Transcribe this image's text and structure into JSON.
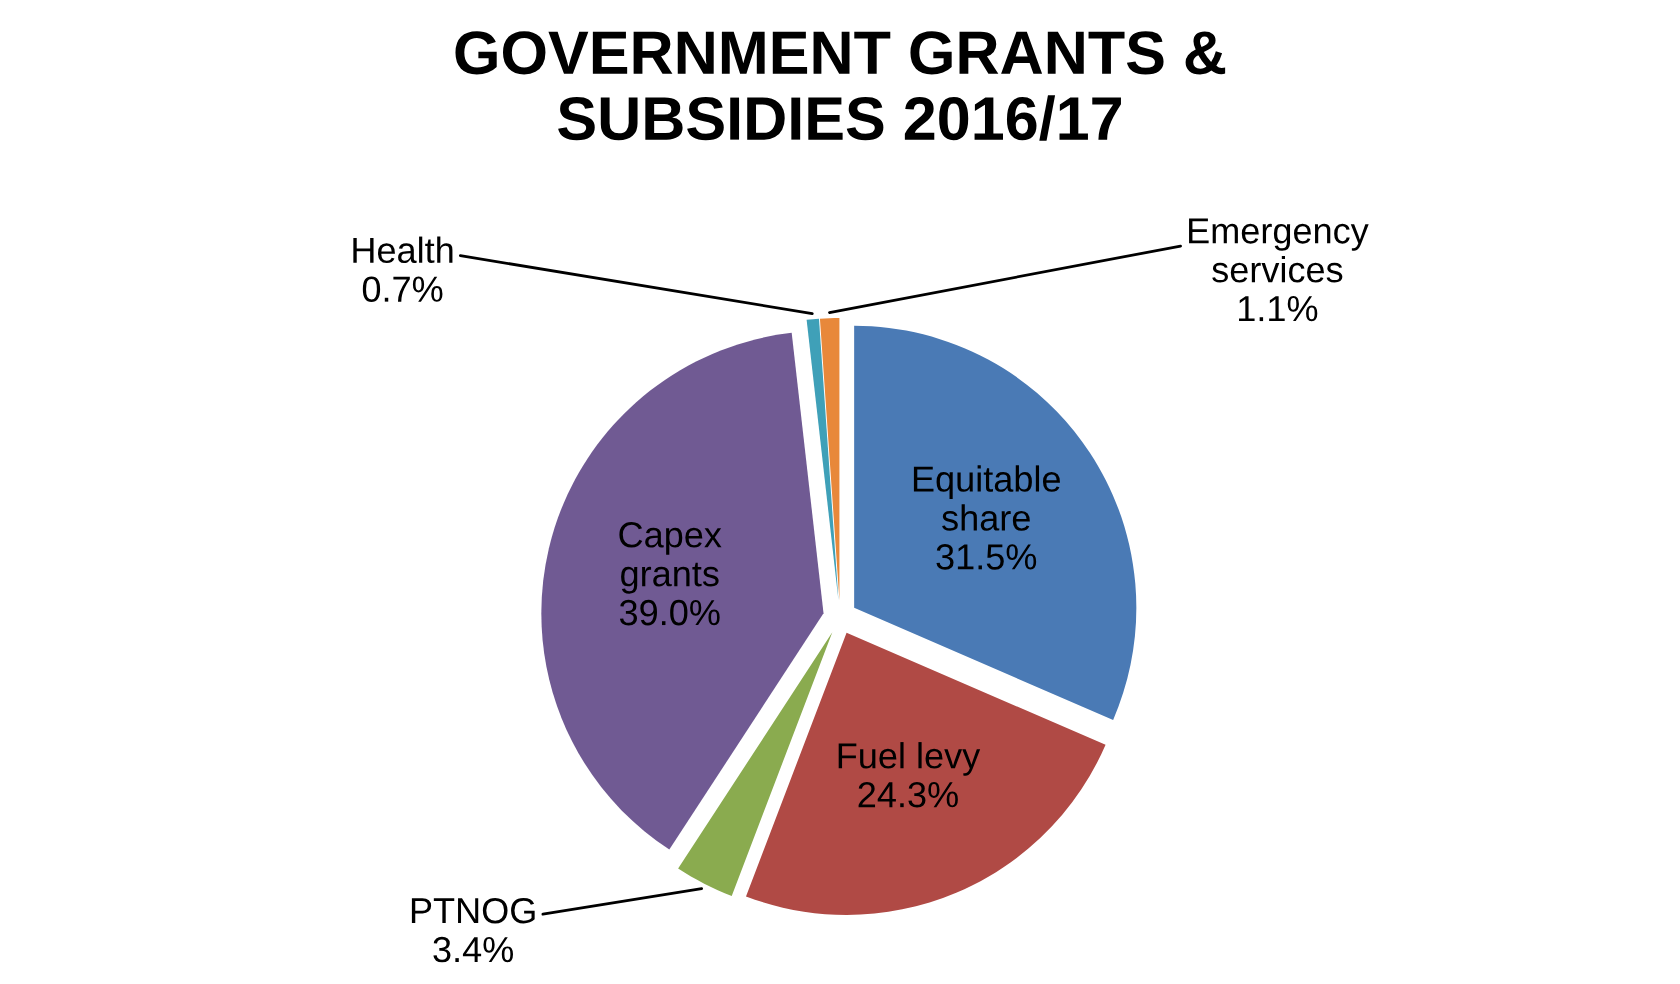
{
  "chart_data": {
    "type": "pie",
    "title": "GOVERNMENT GRANTS &\nSUBSIDIES 2016/17",
    "categories": [
      "Equitable share",
      "Fuel levy",
      "PTNOG",
      "Capex grants",
      "Health",
      "Emergency services"
    ],
    "values": [
      31.5,
      24.3,
      3.4,
      39.0,
      0.7,
      1.1
    ],
    "value_labels": [
      "31.5%",
      "24.3%",
      "3.4%",
      "39.0%",
      "0.7%",
      "1.1%"
    ],
    "colors": [
      "#4a7ab5",
      "#b04a45",
      "#8aab4f",
      "#705a93",
      "#3fa0b8",
      "#e8883a"
    ],
    "legend": false
  }
}
